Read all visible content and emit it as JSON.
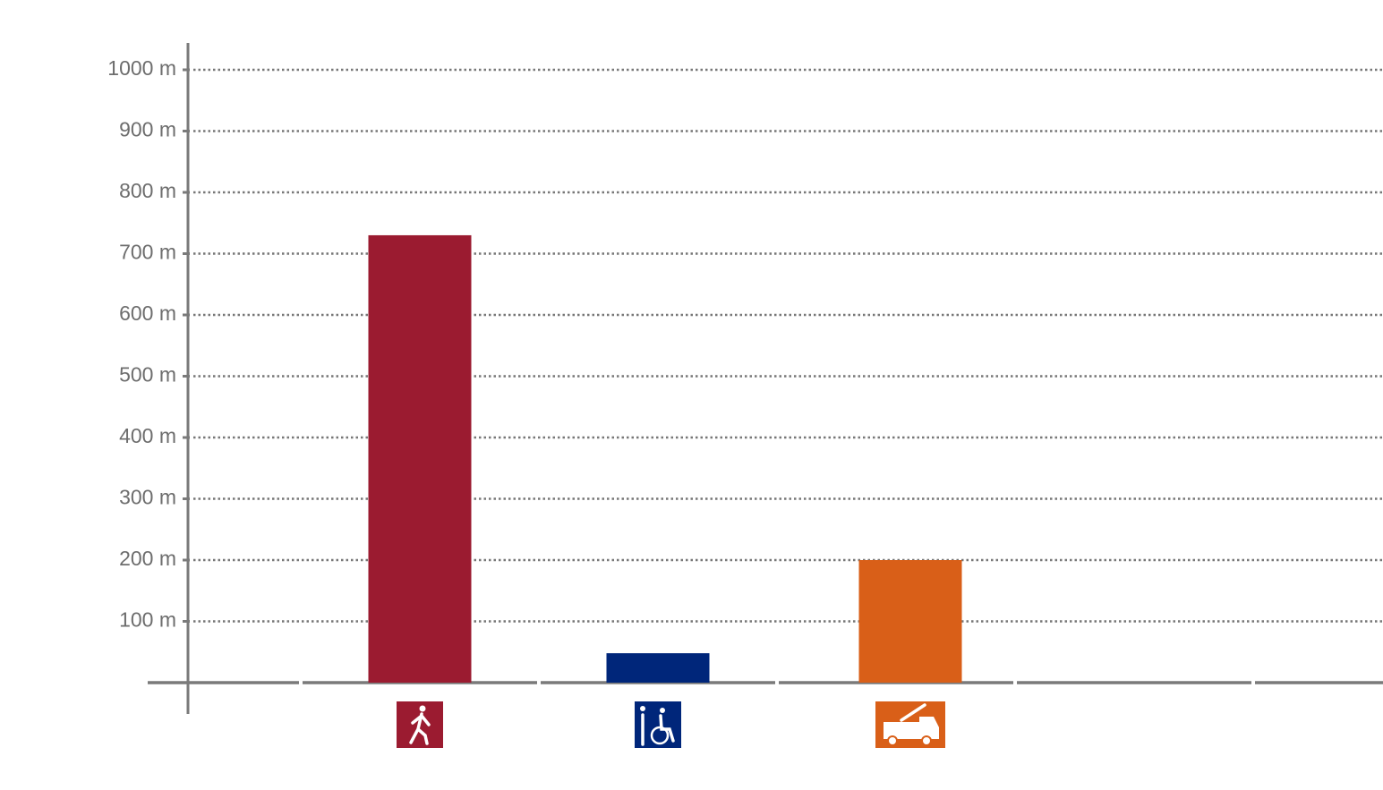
{
  "chart_data": {
    "type": "bar",
    "categories": [
      null,
      null,
      null
    ],
    "values": [
      730,
      48,
      200
    ],
    "colors": [
      "#9b1b30",
      "#00267a",
      "#d95f18"
    ],
    "ylim": [
      0,
      1000
    ],
    "yticks": [
      {
        "value": 100,
        "label": "100 m"
      },
      {
        "value": 200,
        "label": "200 m"
      },
      {
        "value": 300,
        "label": "300 m"
      },
      {
        "value": 400,
        "label": "400 m"
      },
      {
        "value": 500,
        "label": "500 m"
      },
      {
        "value": 600,
        "label": "600 m"
      },
      {
        "value": 700,
        "label": "700 m"
      },
      {
        "value": 800,
        "label": "800 m"
      },
      {
        "value": 900,
        "label": "900 m"
      },
      {
        "value": 1000,
        "label": "1000 m"
      }
    ],
    "grid": true
  }
}
